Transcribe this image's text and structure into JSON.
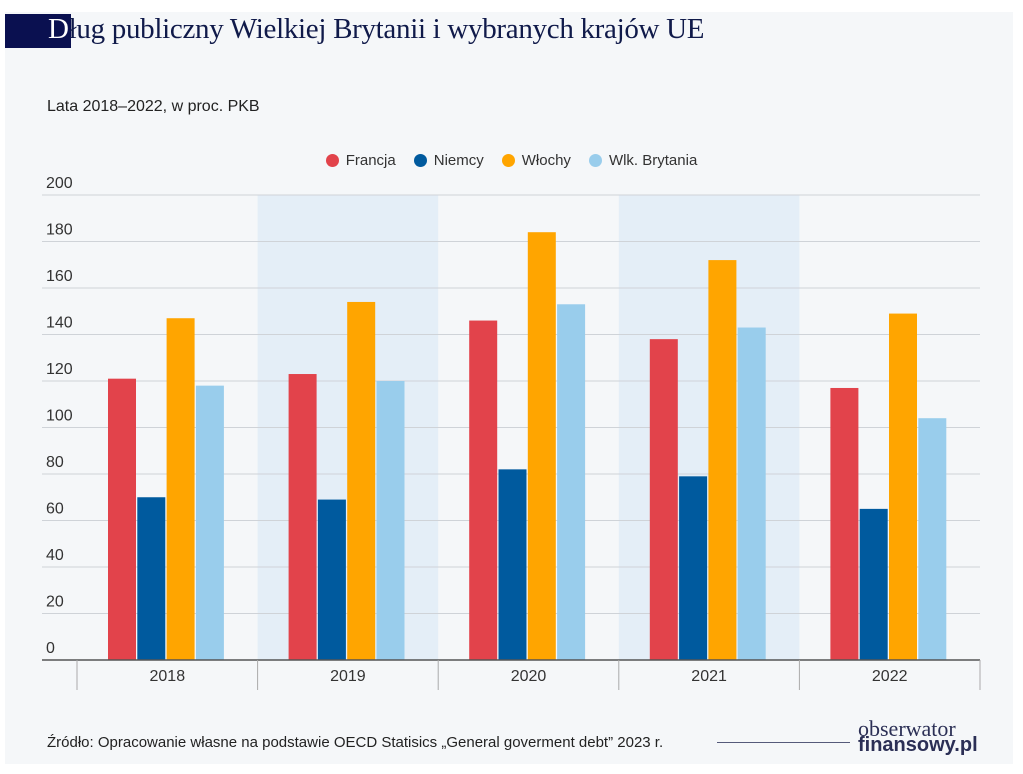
{
  "title": "Dług publiczny Wielkiej Brytanii i wybranych krajów UE",
  "title_first": "D",
  "title_rest": "ług publiczny Wielkiej Brytanii i wybranych krajów UE",
  "subtitle": "Lata 2018–2022, w proc. PKB",
  "source": "Źródło: Opracowanie własne na podstawie OECD Statisics „General goverment debt” 2023 r.",
  "logo": {
    "line1": "obserwator",
    "line2": "finansowy.pl"
  },
  "chart_data": {
    "type": "bar",
    "title": "Dług publiczny Wielkiej Brytanii i wybranych krajów UE",
    "subtitle": "Lata 2018–2022, w proc. PKB",
    "categories": [
      "2018",
      "2019",
      "2020",
      "2021",
      "2022"
    ],
    "series": [
      {
        "name": "Francja",
        "color": "#e2434b",
        "values": [
          121,
          123,
          146,
          138,
          117
        ]
      },
      {
        "name": "Niemcy",
        "color": "#005a9e",
        "values": [
          70,
          69,
          82,
          79,
          65
        ]
      },
      {
        "name": "Włochy",
        "color": "#ffa500",
        "values": [
          147,
          154,
          184,
          172,
          149
        ]
      },
      {
        "name": "Wlk. Brytania",
        "color": "#99cdec",
        "values": [
          118,
          120,
          153,
          143,
          104
        ]
      }
    ],
    "ylim": [
      0,
      200
    ],
    "yticks": [
      "0",
      "20",
      "40",
      "60",
      "80",
      "100",
      "120",
      "140",
      "160",
      "180",
      "200"
    ],
    "grid": true,
    "legend": "top-center",
    "shaded_categories": [
      "2019",
      "2021"
    ],
    "shade_color": "#e4eef7"
  }
}
